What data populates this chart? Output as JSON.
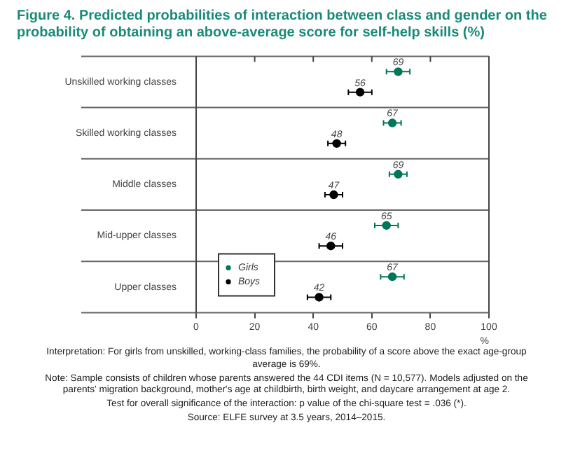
{
  "chart_data": {
    "type": "scatter",
    "orientation": "horizontal",
    "title": "Figure 4. Predicted probabilities of interaction between class and gender on the probability of obtaining an above-average score for self-help skills (%)",
    "categories": [
      "Unskilled working classes",
      "Skilled working classes",
      "Middle classes",
      "Mid-upper classes",
      "Upper classes"
    ],
    "series": [
      {
        "name": "Girls",
        "color": "#00775a",
        "values": [
          69,
          67,
          69,
          65,
          67
        ],
        "errors": [
          4,
          3,
          3,
          4,
          4
        ]
      },
      {
        "name": "Boys",
        "color": "#000000",
        "values": [
          56,
          48,
          47,
          46,
          42
        ],
        "errors": [
          4,
          3,
          3,
          4,
          4
        ]
      }
    ],
    "xlim": [
      0,
      100
    ],
    "xticks": [
      0,
      20,
      40,
      60,
      80,
      100
    ],
    "xlabel": "%",
    "grid": "y",
    "legend": "bottom left",
    "marker": "circle",
    "data_labels": true,
    "annotations": [
      "Interpretation: For girls from unskilled, working-class families, the probability of a score above the exact age-group average is 69%.",
      "Note: Sample consists of children whose parents answered the 44 CDI items (N = 10,577). Models adjusted on the parents' migration background, mother's age at childbirth, birth weight, and daycare arrangement at age 2.",
      "Test for overall significance of the interaction: p value of the chi-square test = .036 (*).",
      "Source: ELFE survey at 3.5 years, 2014–2015."
    ]
  }
}
